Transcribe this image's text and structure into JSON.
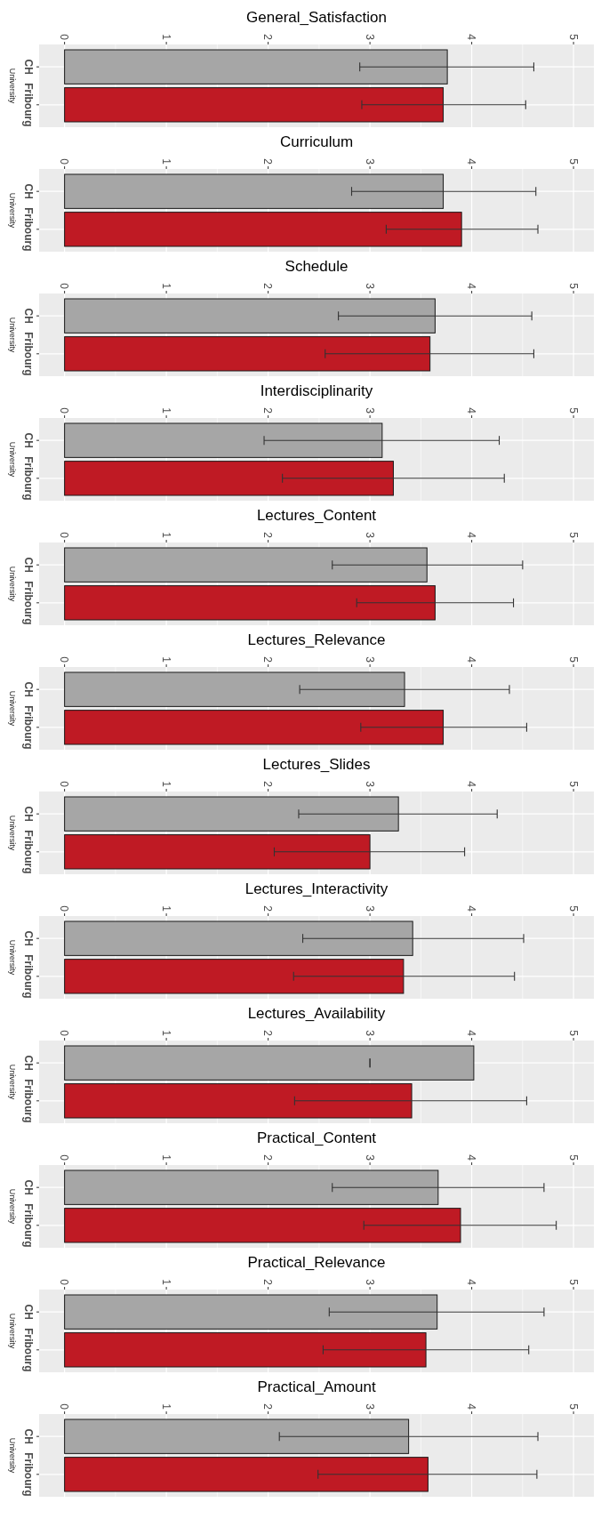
{
  "chart_data": [
    {
      "type": "bar",
      "orientation": "horizontal",
      "title": "General_Satisfaction",
      "ylabel": "University",
      "categories": [
        "CH",
        "Fribourg"
      ],
      "values": [
        3.76,
        3.72
      ],
      "colors": [
        "#a6a6a6",
        "#bf1a24"
      ],
      "errors": [
        [
          2.9,
          4.61
        ],
        [
          2.92,
          4.53
        ]
      ],
      "xlim": [
        -0.25,
        5.2
      ],
      "xticks": [
        0,
        1,
        2,
        3,
        4,
        5
      ],
      "grid": true
    },
    {
      "type": "bar",
      "orientation": "horizontal",
      "title": "Curriculum",
      "ylabel": "University",
      "categories": [
        "CH",
        "Fribourg"
      ],
      "values": [
        3.72,
        3.9
      ],
      "colors": [
        "#a6a6a6",
        "#bf1a24"
      ],
      "errors": [
        [
          2.82,
          4.63
        ],
        [
          3.16,
          4.65
        ]
      ],
      "xlim": [
        -0.25,
        5.2
      ],
      "xticks": [
        0,
        1,
        2,
        3,
        4,
        5
      ],
      "grid": true
    },
    {
      "type": "bar",
      "orientation": "horizontal",
      "title": "Schedule",
      "ylabel": "University",
      "categories": [
        "CH",
        "Fribourg"
      ],
      "values": [
        3.64,
        3.59
      ],
      "colors": [
        "#a6a6a6",
        "#bf1a24"
      ],
      "errors": [
        [
          2.69,
          4.59
        ],
        [
          2.56,
          4.61
        ]
      ],
      "xlim": [
        -0.25,
        5.2
      ],
      "xticks": [
        0,
        1,
        2,
        3,
        4,
        5
      ],
      "grid": true
    },
    {
      "type": "bar",
      "orientation": "horizontal",
      "title": "Interdisciplinarity",
      "ylabel": "University",
      "categories": [
        "CH",
        "Fribourg"
      ],
      "values": [
        3.12,
        3.23
      ],
      "colors": [
        "#a6a6a6",
        "#bf1a24"
      ],
      "errors": [
        [
          1.96,
          4.27
        ],
        [
          2.14,
          4.32
        ]
      ],
      "xlim": [
        -0.25,
        5.2
      ],
      "xticks": [
        0,
        1,
        2,
        3,
        4,
        5
      ],
      "grid": true
    },
    {
      "type": "bar",
      "orientation": "horizontal",
      "title": "Lectures_Content",
      "ylabel": "University",
      "categories": [
        "CH",
        "Fribourg"
      ],
      "values": [
        3.56,
        3.64
      ],
      "colors": [
        "#a6a6a6",
        "#bf1a24"
      ],
      "errors": [
        [
          2.63,
          4.5
        ],
        [
          2.87,
          4.41
        ]
      ],
      "xlim": [
        -0.25,
        5.2
      ],
      "xticks": [
        0,
        1,
        2,
        3,
        4,
        5
      ],
      "grid": true
    },
    {
      "type": "bar",
      "orientation": "horizontal",
      "title": "Lectures_Relevance",
      "ylabel": "University",
      "categories": [
        "CH",
        "Fribourg"
      ],
      "values": [
        3.34,
        3.72
      ],
      "colors": [
        "#a6a6a6",
        "#bf1a24"
      ],
      "errors": [
        [
          2.31,
          4.37
        ],
        [
          2.91,
          4.54
        ]
      ],
      "xlim": [
        -0.25,
        5.2
      ],
      "xticks": [
        0,
        1,
        2,
        3,
        4,
        5
      ],
      "grid": true
    },
    {
      "type": "bar",
      "orientation": "horizontal",
      "title": "Lectures_Slides",
      "ylabel": "University",
      "categories": [
        "CH",
        "Fribourg"
      ],
      "values": [
        3.28,
        3.0
      ],
      "colors": [
        "#a6a6a6",
        "#bf1a24"
      ],
      "errors": [
        [
          2.3,
          4.25
        ],
        [
          2.06,
          3.93
        ]
      ],
      "xlim": [
        -0.25,
        5.2
      ],
      "xticks": [
        0,
        1,
        2,
        3,
        4,
        5
      ],
      "grid": true
    },
    {
      "type": "bar",
      "orientation": "horizontal",
      "title": "Lectures_Interactivity",
      "ylabel": "University",
      "categories": [
        "CH",
        "Fribourg"
      ],
      "values": [
        3.42,
        3.33
      ],
      "colors": [
        "#a6a6a6",
        "#bf1a24"
      ],
      "errors": [
        [
          2.34,
          4.51
        ],
        [
          2.25,
          4.42
        ]
      ],
      "xlim": [
        -0.25,
        5.2
      ],
      "xticks": [
        0,
        1,
        2,
        3,
        4,
        5
      ],
      "grid": true
    },
    {
      "type": "bar",
      "orientation": "horizontal",
      "title": "Lectures_Availability",
      "ylabel": "University",
      "categories": [
        "CH",
        "Fribourg"
      ],
      "values": [
        4.02,
        3.41
      ],
      "colors": [
        "#a6a6a6",
        "#bf1a24"
      ],
      "errors": [
        [
          3.0,
          3.0
        ],
        [
          2.26,
          4.54
        ]
      ],
      "xlim": [
        -0.25,
        5.2
      ],
      "xticks": [
        0,
        1,
        2,
        3,
        4,
        5
      ],
      "grid": true
    },
    {
      "type": "bar",
      "orientation": "horizontal",
      "title": "Practical_Content",
      "ylabel": "University",
      "categories": [
        "CH",
        "Fribourg"
      ],
      "values": [
        3.67,
        3.89
      ],
      "colors": [
        "#a6a6a6",
        "#bf1a24"
      ],
      "errors": [
        [
          2.63,
          4.71
        ],
        [
          2.94,
          4.83
        ]
      ],
      "xlim": [
        -0.25,
        5.2
      ],
      "xticks": [
        0,
        1,
        2,
        3,
        4,
        5
      ],
      "grid": true
    },
    {
      "type": "bar",
      "orientation": "horizontal",
      "title": "Practical_Relevance",
      "ylabel": "University",
      "categories": [
        "CH",
        "Fribourg"
      ],
      "values": [
        3.66,
        3.55
      ],
      "colors": [
        "#a6a6a6",
        "#bf1a24"
      ],
      "errors": [
        [
          2.6,
          4.71
        ],
        [
          2.54,
          4.56
        ]
      ],
      "xlim": [
        -0.25,
        5.2
      ],
      "xticks": [
        0,
        1,
        2,
        3,
        4,
        5
      ],
      "grid": true
    },
    {
      "type": "bar",
      "orientation": "horizontal",
      "title": "Practical_Amount",
      "ylabel": "University",
      "categories": [
        "CH",
        "Fribourg"
      ],
      "values": [
        3.38,
        3.57
      ],
      "colors": [
        "#a6a6a6",
        "#bf1a24"
      ],
      "errors": [
        [
          2.11,
          4.65
        ],
        [
          2.49,
          4.64
        ]
      ],
      "xlim": [
        -0.25,
        5.2
      ],
      "xticks": [
        0,
        1,
        2,
        3,
        4,
        5
      ],
      "grid": true
    }
  ]
}
